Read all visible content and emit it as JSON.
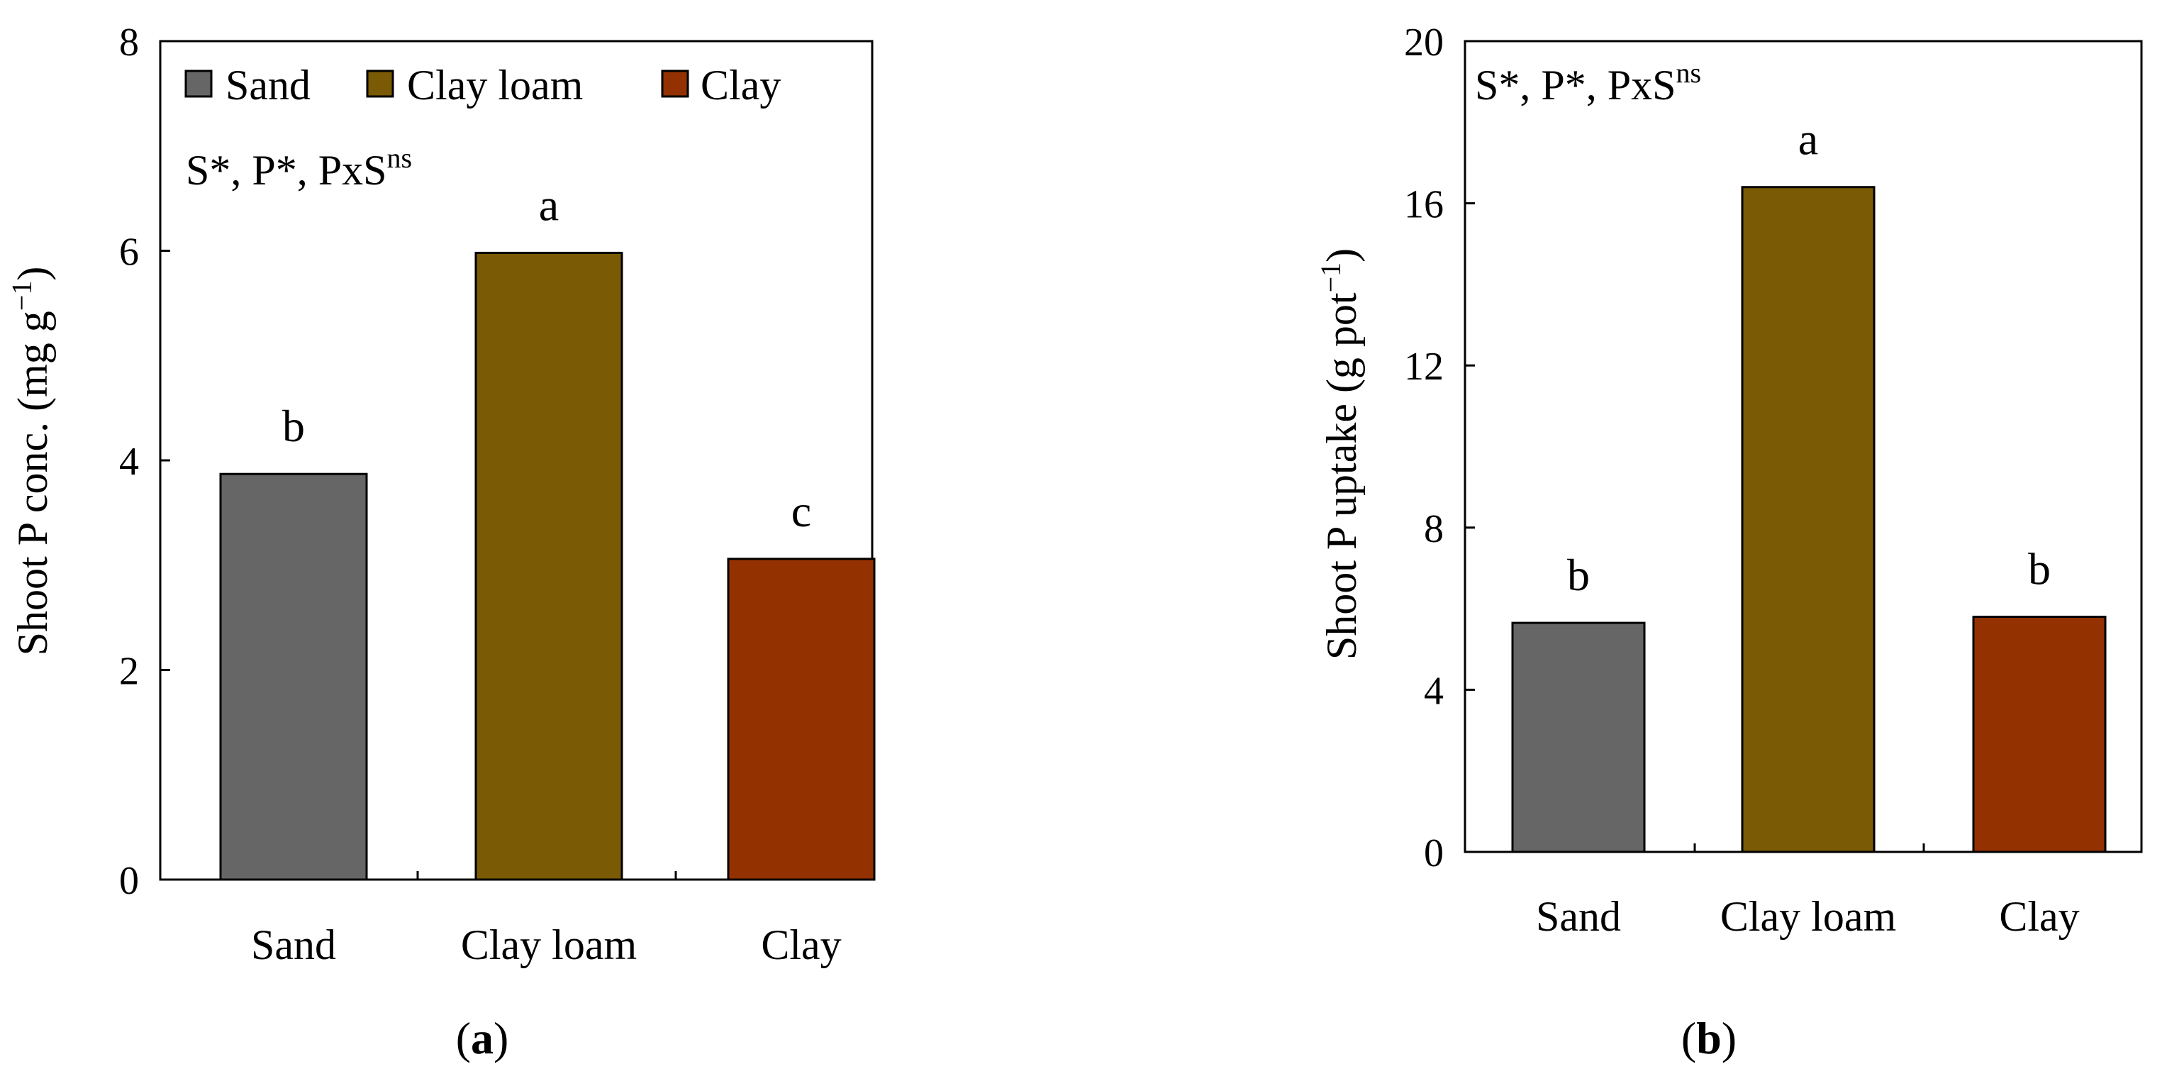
{
  "chart_data": [
    {
      "type": "bar",
      "panel_label": "a",
      "categories": [
        "Sand",
        "Clay loam",
        "Clay"
      ],
      "values": [
        3.87,
        5.98,
        3.06
      ],
      "significance_letters": [
        "b",
        "a",
        "c"
      ],
      "ylabel": "Shoot P conc. (mg g",
      "ylabel_sup": "−1",
      "ylabel_close": ")",
      "ylim": [
        0,
        8
      ],
      "yticks": [
        "0",
        "2",
        "4",
        "6",
        "8"
      ],
      "stats_note": "S*, P*, PxS",
      "stats_note_sup": "ns",
      "legend": {
        "position": "top",
        "entries": [
          "Sand",
          "Clay loam",
          "Clay"
        ]
      },
      "grid": false
    },
    {
      "type": "bar",
      "panel_label": "b",
      "categories": [
        "Sand",
        "Clay loam",
        "Clay"
      ],
      "values": [
        5.65,
        16.4,
        5.8
      ],
      "significance_letters": [
        "b",
        "a",
        "b"
      ],
      "ylabel": "Shoot P uptake (g pot",
      "ylabel_sup": "−1",
      "ylabel_close": ")",
      "ylim": [
        0,
        20
      ],
      "yticks": [
        "0",
        "4",
        "8",
        "12",
        "16",
        "20"
      ],
      "stats_note": "S*, P*, PxS",
      "stats_note_sup": "ns",
      "grid": false
    }
  ],
  "colors": {
    "Sand": "#666666",
    "Clay loam": "#7a5a04",
    "Clay": "#933200",
    "axis": "#000000"
  }
}
